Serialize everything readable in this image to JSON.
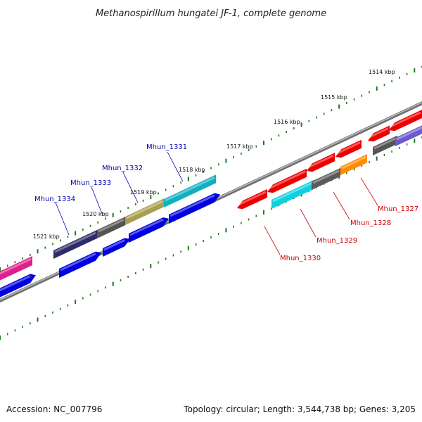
{
  "title": "Methanospirillum hungatei JF-1, complete genome",
  "footer": {
    "accession": "Accession: NC_007796",
    "summary": "Topology: circular; Length: 3,544,738 bp; Genes: 3,205"
  },
  "ticks": [
    "1514 kbp",
    "1515 kbp",
    "1516 kbp",
    "1517 kbp",
    "1518 kbp",
    "1519 kbp",
    "1520 kbp",
    "1521 kbp"
  ],
  "labels": {
    "forward": [
      "Mhun_1331",
      "Mhun_1332",
      "Mhun_1333",
      "Mhun_1334"
    ],
    "reverse": [
      "Mhun_1327",
      "Mhun_1328",
      "Mhun_1329",
      "Mhun_1330"
    ]
  },
  "colors": {
    "forward_label": "#0000aa",
    "reverse_label": "#cc0000",
    "tick": "#1a7a1a",
    "backbone": "#808080"
  }
}
